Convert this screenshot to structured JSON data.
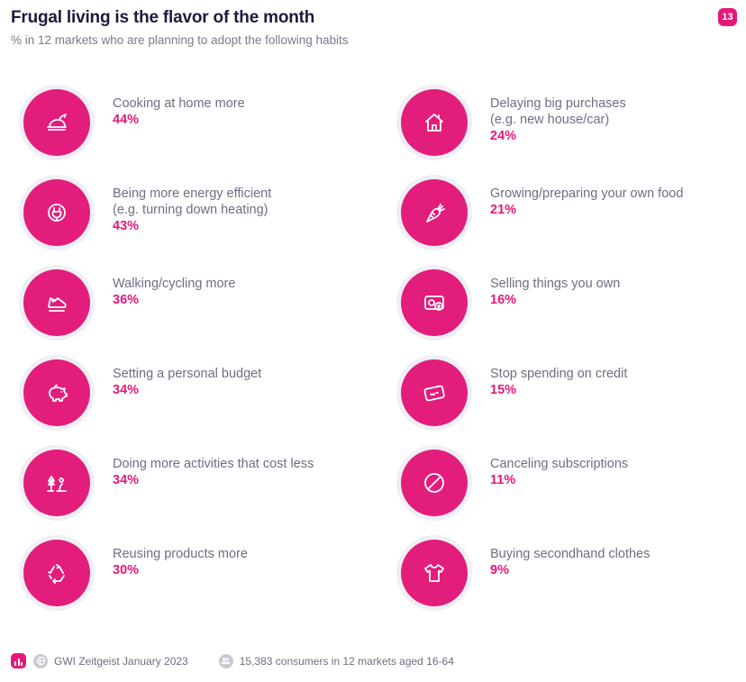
{
  "header": {
    "title": "Frugal living is the flavor of the month",
    "subtitle": "% in 12 markets who are planning to adopt the following habits",
    "page_number": "13"
  },
  "colors": {
    "accent": "#e5187a",
    "circle_bg": "#efeff4",
    "text": "#6e6e82"
  },
  "chart_data": {
    "type": "table",
    "title": "Frugal living is the flavor of the month",
    "subtitle": "% in 12 markets who are planning to adopt the following habits",
    "unit": "%",
    "items": [
      {
        "label": "Cooking at home more",
        "value": 44,
        "display": "44%",
        "icon": "roast-chicken-icon"
      },
      {
        "label": "Being more energy efficient\n(e.g. turning down heating)",
        "value": 43,
        "display": "43%",
        "icon": "power-plug-icon"
      },
      {
        "label": "Walking/cycling more",
        "value": 36,
        "display": "36%",
        "icon": "running-shoe-icon"
      },
      {
        "label": "Setting a personal budget",
        "value": 34,
        "display": "34%",
        "icon": "piggy-bank-icon"
      },
      {
        "label": "Doing more activities that cost less",
        "value": 34,
        "display": "34%",
        "icon": "outdoor-tree-icon"
      },
      {
        "label": "Reusing products more",
        "value": 30,
        "display": "30%",
        "icon": "recycle-icon"
      },
      {
        "label": "Delaying big purchases\n(e.g. new house/car)",
        "value": 24,
        "display": "24%",
        "icon": "house-icon"
      },
      {
        "label": "Growing/preparing your own food",
        "value": 21,
        "display": "21%",
        "icon": "carrot-icon"
      },
      {
        "label": "Selling things you own",
        "value": 16,
        "display": "16%",
        "icon": "sell-tag-icon"
      },
      {
        "label": "Stop spending on credit",
        "value": 15,
        "display": "15%",
        "icon": "credit-card-icon"
      },
      {
        "label": "Canceling subscriptions",
        "value": 11,
        "display": "11%",
        "icon": "cancel-icon"
      },
      {
        "label": "Buying secondhand clothes",
        "value": 9,
        "display": "9%",
        "icon": "tshirt-icon"
      }
    ]
  },
  "footer": {
    "source": "GWI Zeitgeist January 2023",
    "sample": "15,383 consumers in 12 markets aged 16-64"
  }
}
